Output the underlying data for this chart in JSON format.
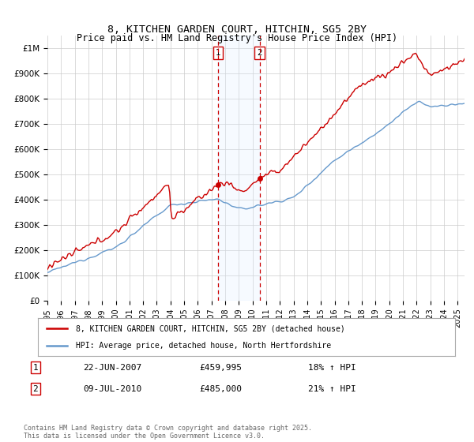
{
  "title_line1": "8, KITCHEN GARDEN COURT, HITCHIN, SG5 2BY",
  "title_line2": "Price paid vs. HM Land Registry's House Price Index (HPI)",
  "ylim": [
    0,
    1050000
  ],
  "yticks": [
    0,
    100000,
    200000,
    300000,
    400000,
    500000,
    600000,
    700000,
    800000,
    900000,
    1000000
  ],
  "ytick_labels": [
    "£0",
    "£100K",
    "£200K",
    "£300K",
    "£400K",
    "£500K",
    "£600K",
    "£700K",
    "£800K",
    "£900K",
    "£1M"
  ],
  "xlim_start": 1995.0,
  "xlim_end": 2025.5,
  "background_color": "#ffffff",
  "grid_color": "#cccccc",
  "red_line_color": "#cc0000",
  "blue_line_color": "#6699cc",
  "marker1_date": 2007.47,
  "marker1_price": 459995,
  "marker1_label": "22-JUN-2007",
  "marker1_value_str": "£459,995",
  "marker1_hpi": "18% ↑ HPI",
  "marker2_date": 2010.52,
  "marker2_price": 485000,
  "marker2_label": "09-JUL-2010",
  "marker2_value_str": "£485,000",
  "marker2_hpi": "21% ↑ HPI",
  "legend_line1": "8, KITCHEN GARDEN COURT, HITCHIN, SG5 2BY (detached house)",
  "legend_line2": "HPI: Average price, detached house, North Hertfordshire",
  "footnote": "Contains HM Land Registry data © Crown copyright and database right 2025.\nThis data is licensed under the Open Government Licence v3.0.",
  "sale_box_color": "#cc0000",
  "shade_color": "#ddeeff"
}
